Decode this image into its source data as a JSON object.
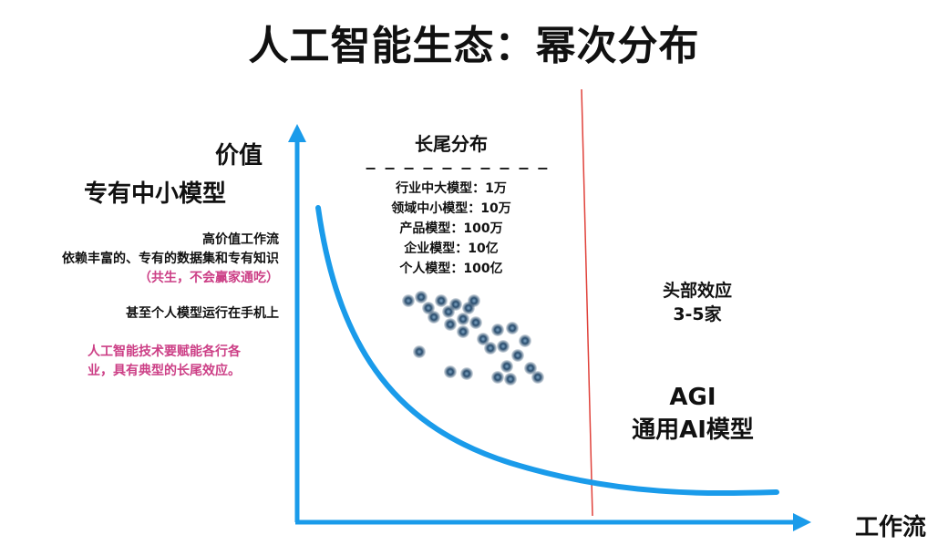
{
  "title": "人工智能生态：幂次分布",
  "y_axis": {
    "label": "价值",
    "sublabel": "专有中小模型"
  },
  "x_axis": {
    "label": "工作流"
  },
  "left_notes": {
    "high_value": [
      "高价值工作流",
      "依赖丰富的、专有的数据集和专有知识",
      "（共生，不会赢家通吃）"
    ],
    "phone_note": "甚至个人模型运行在手机上",
    "pink_note": [
      "人工智能技术要赋能各行各",
      "业，具有典型的长尾效应。"
    ]
  },
  "long_tail": {
    "title": "长尾分布",
    "dashes": "− − − − − − − − − −",
    "items": [
      "行业中大模型：1万",
      "领域中小模型：10万",
      "产品模型：100万",
      "企业模型：10亿",
      "个人模型：100亿"
    ]
  },
  "head": {
    "line1": "头部效应",
    "line2": "3-5家"
  },
  "agi": {
    "line1": "AGI",
    "line2": "通用AI模型"
  },
  "colors": {
    "axis": "#1a9bea",
    "divider": "#e0413a",
    "pink": "#cc3f86",
    "dots": "#2a4d6e"
  }
}
